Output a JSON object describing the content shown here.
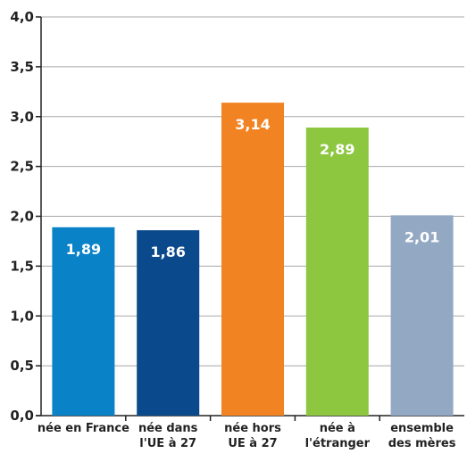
{
  "chart_data": {
    "type": "bar",
    "categories": [
      [
        "née en France"
      ],
      [
        "née dans",
        "l'UE à 27"
      ],
      [
        "née hors",
        "UE à 27"
      ],
      [
        "née à",
        "l'étranger"
      ],
      [
        "ensemble",
        "des mères"
      ]
    ],
    "values": [
      1.89,
      1.86,
      3.14,
      2.89,
      2.01
    ],
    "value_labels": [
      "1,89",
      "1,86",
      "3,14",
      "2,89",
      "2,01"
    ],
    "colors": [
      "#0a82c8",
      "#0a4a8c",
      "#f28322",
      "#8dc63f",
      "#93a8c3"
    ],
    "yticks": [
      "0,0",
      "0,5",
      "1,0",
      "1,5",
      "2,0",
      "2,5",
      "3,0",
      "3,5",
      "4,0"
    ],
    "ylim": [
      0,
      4
    ],
    "grid": true,
    "grid_color": "#a8a8a8"
  }
}
